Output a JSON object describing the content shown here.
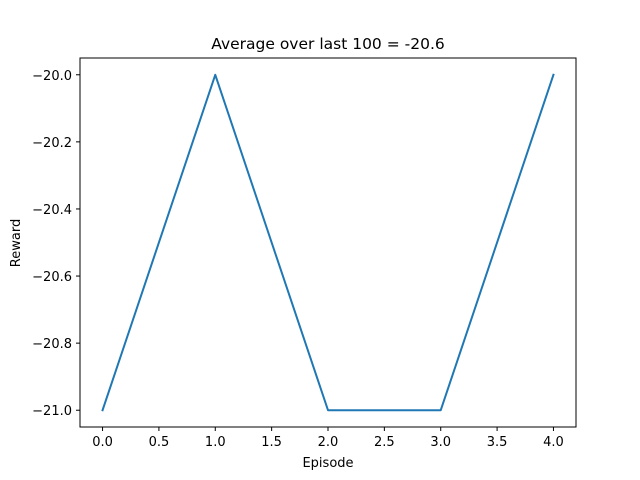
{
  "chart_data": {
    "type": "line",
    "title": "Average over last 100 = -20.6",
    "xlabel": "Episode",
    "ylabel": "Reward",
    "xlim": [
      -0.2,
      4.2
    ],
    "ylim": [
      -21.05,
      -19.95
    ],
    "x_ticks": [
      0.0,
      0.5,
      1.0,
      1.5,
      2.0,
      2.5,
      3.0,
      3.5,
      4.0
    ],
    "x_tick_labels": [
      "0.0",
      "0.5",
      "1.0",
      "1.5",
      "2.0",
      "2.5",
      "3.0",
      "3.5",
      "4.0"
    ],
    "y_ticks": [
      -20.0,
      -20.2,
      -20.4,
      -20.6,
      -20.8,
      -21.0
    ],
    "y_tick_labels": [
      "−20.0",
      "−20.2",
      "−20.4",
      "−20.6",
      "−20.8",
      "−21.0"
    ],
    "grid": false,
    "series": [
      {
        "color": "#1f77b4",
        "x": [
          0,
          1,
          2,
          3,
          4
        ],
        "y": [
          -21.0,
          -20.0,
          -21.0,
          -21.0,
          -20.0
        ]
      }
    ]
  }
}
